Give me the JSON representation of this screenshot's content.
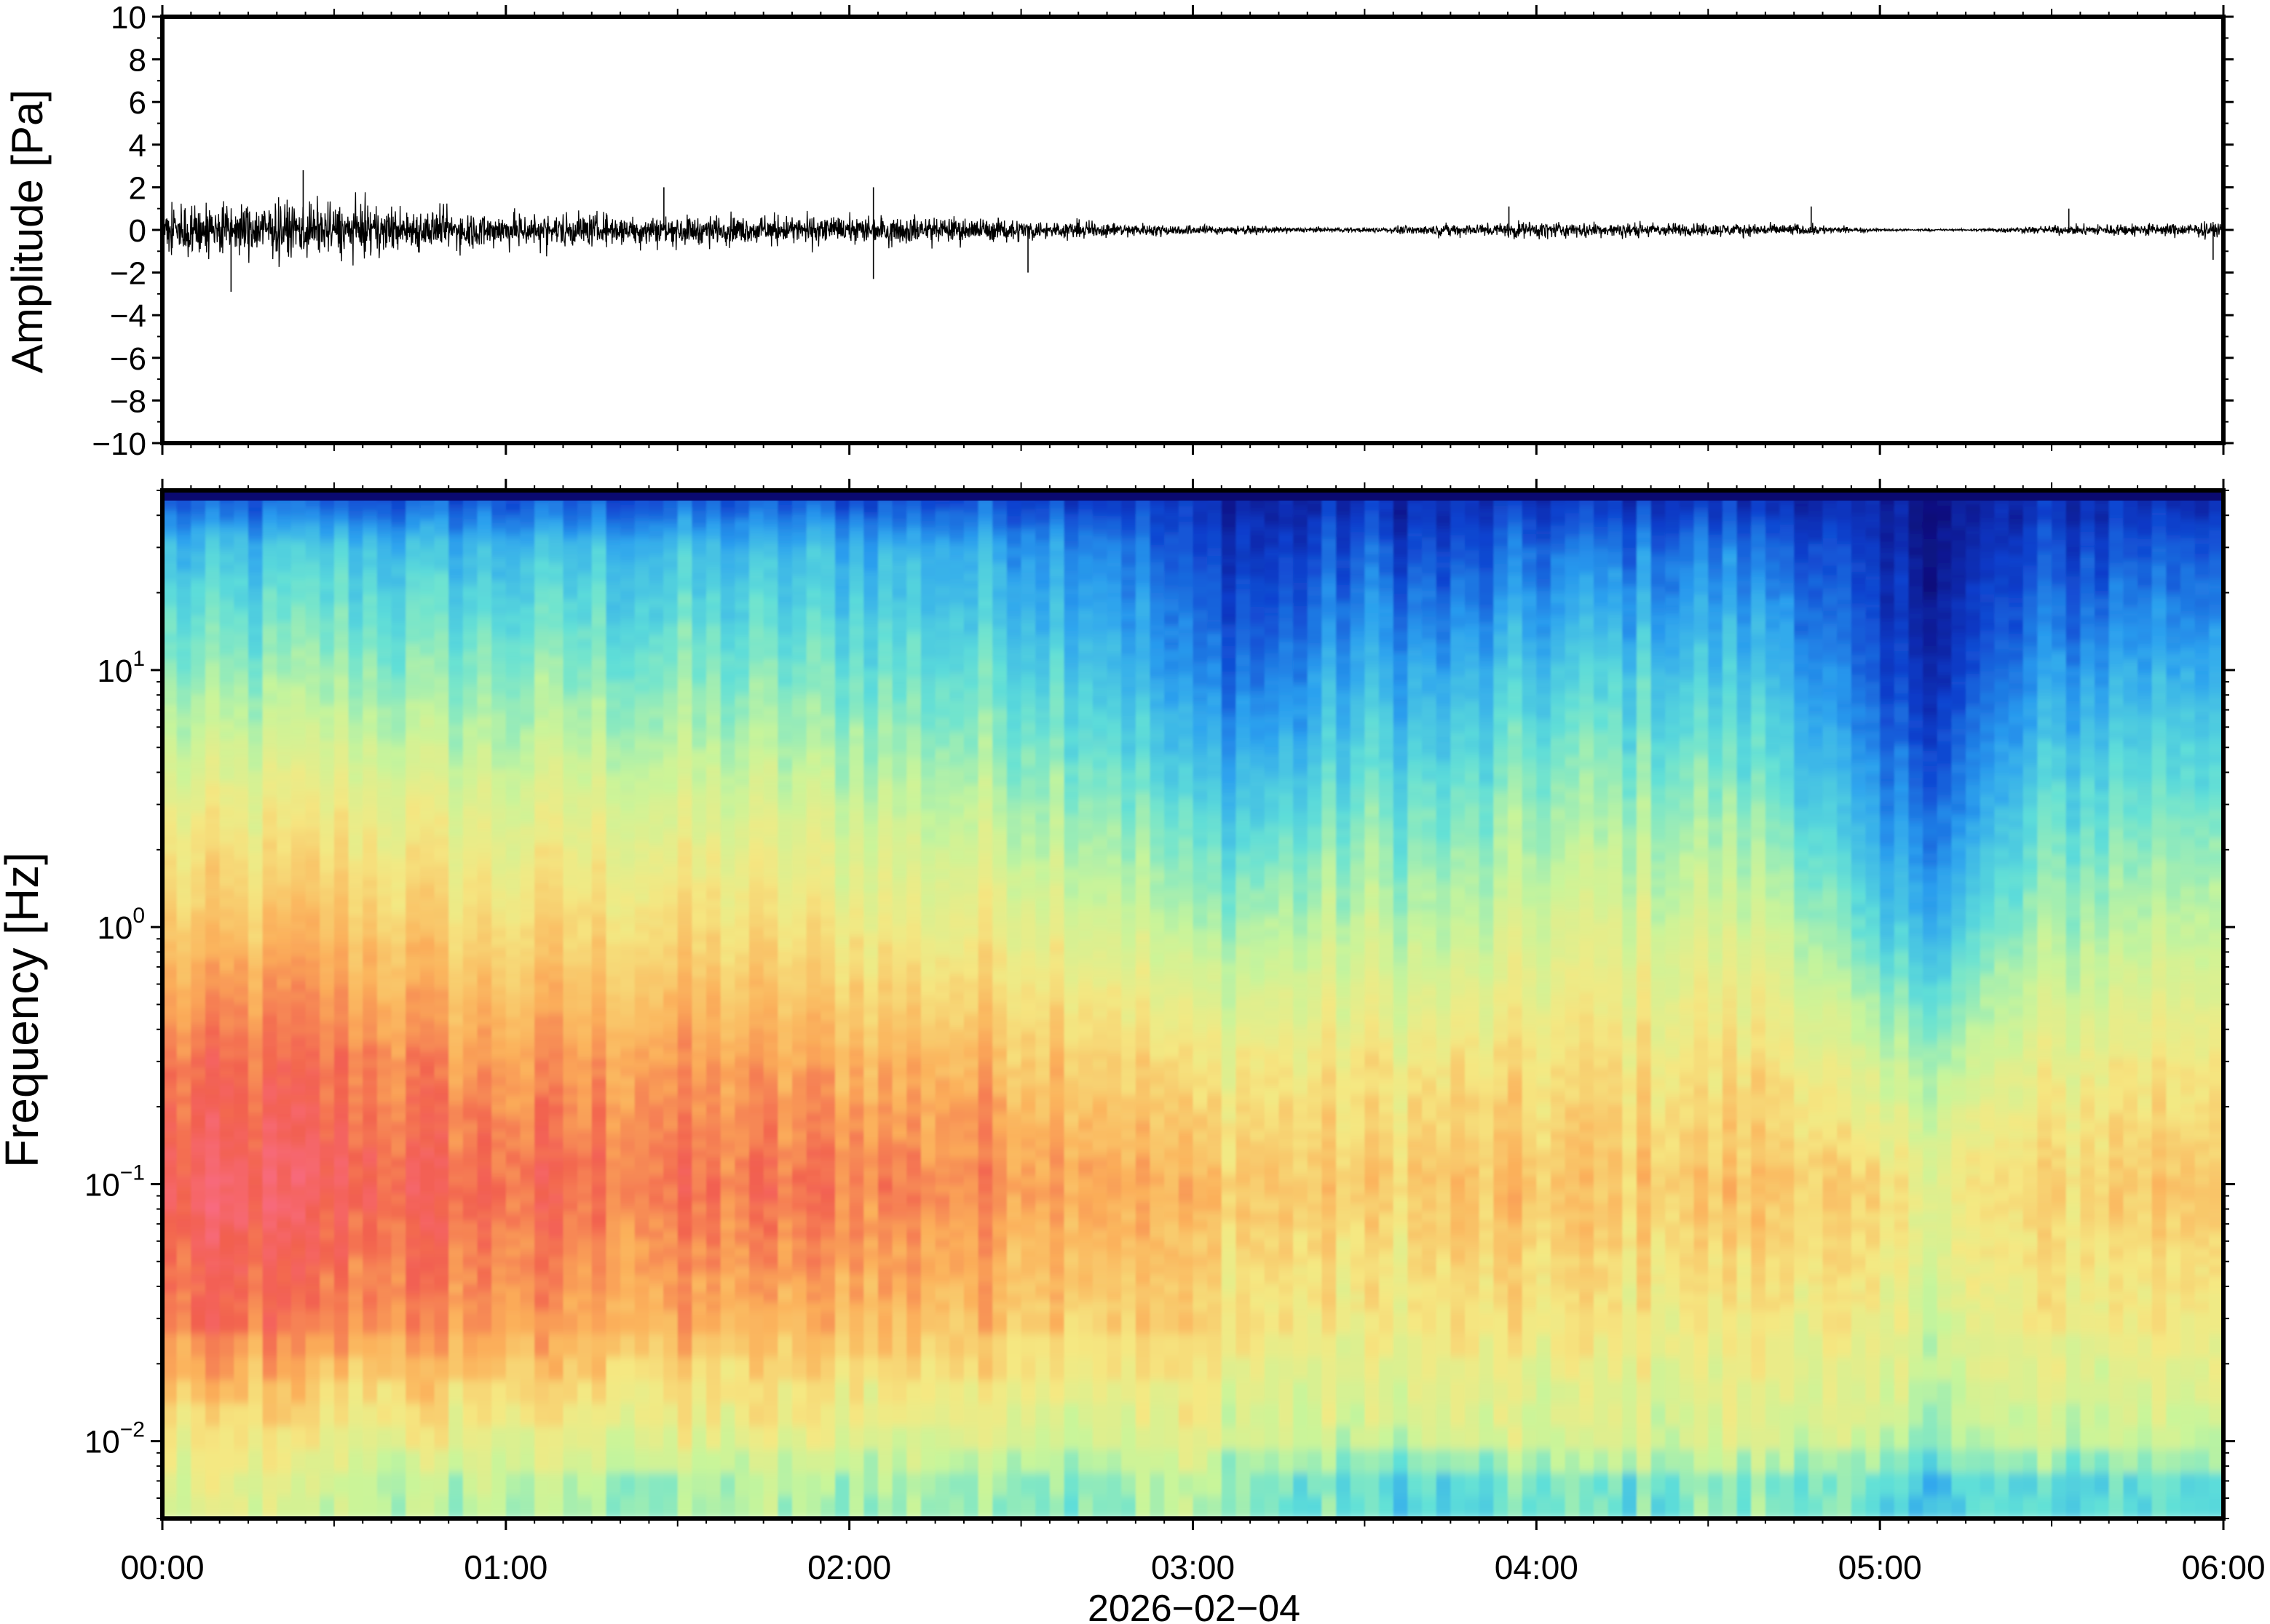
{
  "chart_data": [
    {
      "type": "line",
      "panel": "waveform",
      "ylabel": "Amplitude [Pa]",
      "ylim": [
        -10,
        10
      ],
      "yticks": [
        10,
        8,
        6,
        4,
        2,
        0,
        -2,
        -4,
        -6,
        -8,
        -10
      ],
      "ytick_labels": [
        "10",
        "8",
        "6",
        "4",
        "2",
        "0",
        "−2",
        "−4",
        "−6",
        "−8",
        "−10"
      ],
      "xlim_hours": [
        0,
        6
      ],
      "envelope": {
        "hours": [
          0.0,
          0.25,
          0.5,
          0.75,
          1.0,
          1.25,
          1.5,
          1.75,
          2.0,
          2.25,
          2.5,
          2.75,
          3.0,
          3.25,
          3.5,
          3.75,
          4.0,
          4.25,
          4.5,
          4.75,
          5.0,
          5.25,
          5.5,
          5.75,
          6.0
        ],
        "amplitude_pa": [
          1.9,
          1.9,
          1.8,
          1.4,
          1.2,
          1.1,
          1.0,
          1.0,
          0.9,
          0.9,
          0.7,
          0.5,
          0.35,
          0.2,
          0.15,
          0.4,
          0.6,
          0.5,
          0.45,
          0.4,
          0.08,
          0.06,
          0.3,
          0.45,
          0.5
        ]
      },
      "spikes": [
        {
          "hour": 0.41,
          "pa": 2.8
        },
        {
          "hour": 0.2,
          "pa": -2.9
        },
        {
          "hour": 1.46,
          "pa": 2.0
        },
        {
          "hour": 2.07,
          "pa": 2.0
        },
        {
          "hour": 2.07,
          "pa": -2.3
        },
        {
          "hour": 2.52,
          "pa": -2.0
        },
        {
          "hour": 3.92,
          "pa": 1.1
        },
        {
          "hour": 4.8,
          "pa": 1.1
        },
        {
          "hour": 5.55,
          "pa": 1.0
        },
        {
          "hour": 5.97,
          "pa": -1.4
        }
      ]
    },
    {
      "type": "heatmap",
      "panel": "spectrogram",
      "ylabel": "Frequency [Hz]",
      "yscale": "log",
      "ylim_hz": [
        0.005,
        50
      ],
      "yticks_hz": [
        0.01,
        0.1,
        1,
        10
      ],
      "ytick_labels": [
        {
          "base": "10",
          "exp": "−2"
        },
        {
          "base": "10",
          "exp": "−1"
        },
        {
          "base": "10",
          "exp": "0"
        },
        {
          "base": "10",
          "exp": "1"
        }
      ],
      "xlim_hours": [
        0,
        6
      ],
      "xticks_hours": [
        0,
        1,
        2,
        3,
        4,
        5,
        6
      ],
      "xtick_labels": [
        "00:00",
        "01:00",
        "02:00",
        "03:00",
        "04:00",
        "05:00",
        "06:00"
      ],
      "xlabel": "2026−02−04",
      "colormap": "rainbow",
      "colormap_stops": [
        "#0a0a78",
        "#0e3fd0",
        "#2aa0f0",
        "#5fe0d8",
        "#c8f59a",
        "#f5e882",
        "#fbb05a",
        "#f2604f",
        "#fa6e8c"
      ],
      "time_bins_hours": [
        0.0,
        0.25,
        0.5,
        0.75,
        1.0,
        1.25,
        1.5,
        1.75,
        2.0,
        2.25,
        2.5,
        2.75,
        3.0,
        3.25,
        3.5,
        3.75,
        4.0,
        4.25,
        4.5,
        4.75,
        5.0,
        5.25,
        5.5,
        5.75,
        6.0
      ],
      "freq_bins_hz": [
        0.007,
        0.01,
        0.03,
        0.1,
        0.3,
        1,
        3,
        10,
        30,
        45
      ],
      "power_index": [
        [
          0.55,
          0.6,
          0.82,
          0.9,
          0.82,
          0.68,
          0.58,
          0.42,
          0.3,
          0.16
        ],
        [
          0.55,
          0.6,
          0.85,
          0.92,
          0.85,
          0.7,
          0.58,
          0.42,
          0.3,
          0.16
        ],
        [
          0.52,
          0.58,
          0.8,
          0.9,
          0.84,
          0.72,
          0.6,
          0.45,
          0.33,
          0.16
        ],
        [
          0.48,
          0.58,
          0.8,
          0.88,
          0.8,
          0.68,
          0.57,
          0.42,
          0.31,
          0.16
        ],
        [
          0.5,
          0.58,
          0.78,
          0.86,
          0.78,
          0.65,
          0.55,
          0.42,
          0.3,
          0.16
        ],
        [
          0.48,
          0.57,
          0.76,
          0.85,
          0.78,
          0.66,
          0.56,
          0.42,
          0.31,
          0.16
        ],
        [
          0.45,
          0.56,
          0.75,
          0.84,
          0.78,
          0.65,
          0.54,
          0.41,
          0.3,
          0.16
        ],
        [
          0.48,
          0.56,
          0.74,
          0.84,
          0.76,
          0.64,
          0.53,
          0.4,
          0.29,
          0.15
        ],
        [
          0.46,
          0.56,
          0.74,
          0.84,
          0.75,
          0.62,
          0.52,
          0.4,
          0.3,
          0.15
        ],
        [
          0.46,
          0.55,
          0.72,
          0.82,
          0.74,
          0.6,
          0.5,
          0.38,
          0.28,
          0.15
        ],
        [
          0.45,
          0.55,
          0.72,
          0.8,
          0.73,
          0.6,
          0.49,
          0.37,
          0.27,
          0.15
        ],
        [
          0.46,
          0.55,
          0.7,
          0.78,
          0.7,
          0.56,
          0.45,
          0.33,
          0.24,
          0.14
        ],
        [
          0.48,
          0.56,
          0.66,
          0.72,
          0.62,
          0.46,
          0.34,
          0.2,
          0.12,
          0.08
        ],
        [
          0.4,
          0.52,
          0.62,
          0.7,
          0.62,
          0.48,
          0.34,
          0.2,
          0.1,
          0.06
        ],
        [
          0.38,
          0.5,
          0.6,
          0.68,
          0.62,
          0.5,
          0.4,
          0.28,
          0.16,
          0.08
        ],
        [
          0.35,
          0.52,
          0.62,
          0.7,
          0.62,
          0.48,
          0.38,
          0.26,
          0.12,
          0.08
        ],
        [
          0.4,
          0.52,
          0.62,
          0.7,
          0.64,
          0.54,
          0.44,
          0.32,
          0.18,
          0.1
        ],
        [
          0.4,
          0.54,
          0.62,
          0.7,
          0.64,
          0.55,
          0.45,
          0.34,
          0.2,
          0.1
        ],
        [
          0.42,
          0.54,
          0.62,
          0.7,
          0.64,
          0.54,
          0.44,
          0.32,
          0.2,
          0.1
        ],
        [
          0.44,
          0.55,
          0.64,
          0.72,
          0.64,
          0.52,
          0.4,
          0.3,
          0.18,
          0.1
        ],
        [
          0.34,
          0.48,
          0.56,
          0.62,
          0.48,
          0.3,
          0.2,
          0.1,
          0.05,
          0.04
        ],
        [
          0.34,
          0.48,
          0.56,
          0.62,
          0.5,
          0.34,
          0.22,
          0.12,
          0.06,
          0.04
        ],
        [
          0.36,
          0.5,
          0.6,
          0.66,
          0.58,
          0.46,
          0.36,
          0.24,
          0.12,
          0.08
        ],
        [
          0.38,
          0.52,
          0.62,
          0.7,
          0.62,
          0.5,
          0.4,
          0.28,
          0.16,
          0.1
        ],
        [
          0.4,
          0.53,
          0.64,
          0.72,
          0.64,
          0.52,
          0.42,
          0.3,
          0.18,
          0.1
        ]
      ]
    }
  ]
}
